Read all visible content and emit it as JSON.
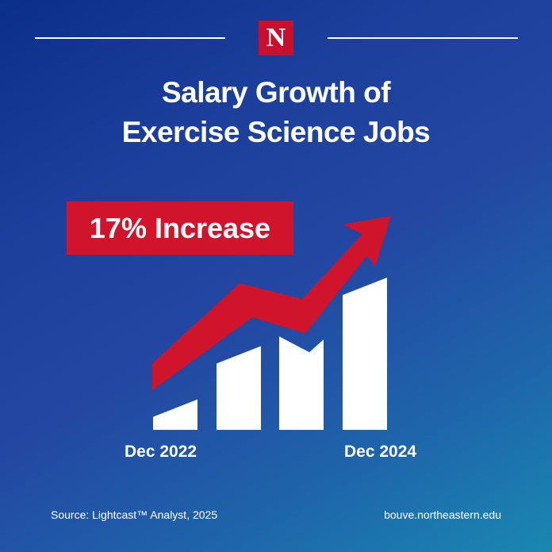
{
  "brand": {
    "logo_letter": "N",
    "accent_color": "#c8102e",
    "background_color": "#1c3f9c"
  },
  "title_lines": [
    "Salary Growth of",
    "Exercise Science Jobs"
  ],
  "callout": "17% Increase",
  "source": "Source: Lightcast™ Analyst, 2025",
  "url": "bouve.northeastern.edu",
  "chart_data": {
    "type": "bar",
    "title": "Salary Growth of Exercise Science Jobs",
    "categories": [
      "Dec 2022",
      "",
      "",
      "Dec 2024"
    ],
    "tick_labels": [
      "Dec 2022",
      "Dec 2024"
    ],
    "values": [
      0.2,
      0.55,
      0.52,
      1.0
    ],
    "annotation": "17% Increase",
    "trend_arrow": "up",
    "ylim": [
      0,
      1
    ],
    "grid": false,
    "bar_color": "#ffffff",
    "arrow_color": "#d0142c"
  }
}
